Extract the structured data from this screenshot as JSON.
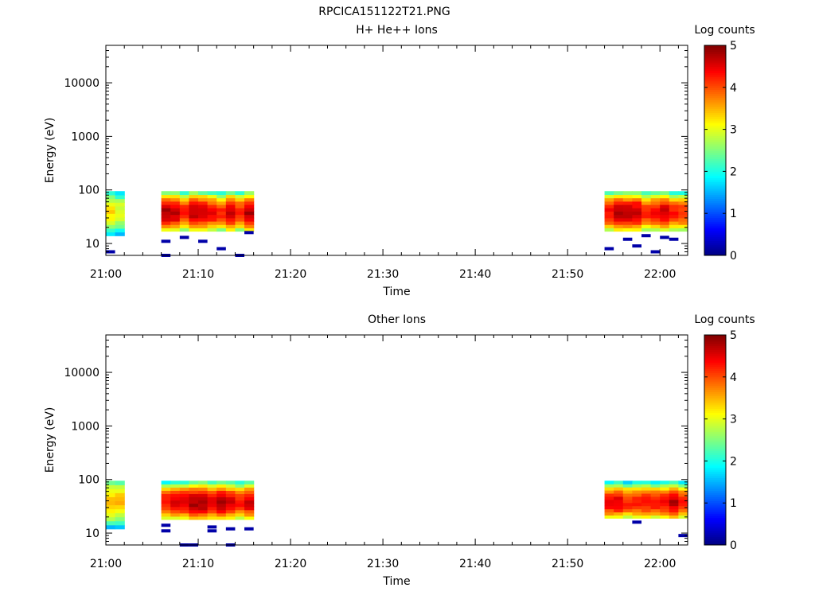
{
  "figure_title": "RPCICA151122T21.PNG",
  "chart_data": [
    {
      "type": "heatmap",
      "title": "H+ He++ Ions",
      "xlabel": "Time",
      "ylabel": "Energy (eV)",
      "y_scale": "log",
      "ylim": [
        6,
        50000
      ],
      "xlim": [
        "21:00",
        "22:03"
      ],
      "x_ticks": [
        "21:00",
        "21:10",
        "21:20",
        "21:30",
        "21:40",
        "21:50",
        "22:00"
      ],
      "y_ticks": [
        "10",
        "100",
        "1000",
        "10000"
      ],
      "colorbar": {
        "label": "Log counts",
        "min": 0,
        "max": 5,
        "ticks": [
          "0",
          "1",
          "2",
          "3",
          "4",
          "5"
        ]
      },
      "blocks": [
        {
          "start": "21:00",
          "end": "21:02",
          "e_min": 14,
          "e_max": 95,
          "peak": 3.3
        },
        {
          "start": "21:06",
          "end": "21:16",
          "e_min": 17,
          "e_max": 95,
          "peak": 4.5
        },
        {
          "start": "21:54",
          "end": "22:03",
          "e_min": 17,
          "e_max": 95,
          "peak": 4.4
        }
      ],
      "sparse_low_energy": [
        {
          "time": "21:00",
          "energy": 7
        },
        {
          "time": "21:06",
          "energy": 11
        },
        {
          "time": "21:06",
          "energy": 6
        },
        {
          "time": "21:08",
          "energy": 13
        },
        {
          "time": "21:10",
          "energy": 11
        },
        {
          "time": "21:12",
          "energy": 8
        },
        {
          "time": "21:14",
          "energy": 6
        },
        {
          "time": "21:15",
          "energy": 16
        },
        {
          "time": "21:54",
          "energy": 8
        },
        {
          "time": "21:56",
          "energy": 12
        },
        {
          "time": "21:57",
          "energy": 9
        },
        {
          "time": "21:58",
          "energy": 14
        },
        {
          "time": "21:59",
          "energy": 7
        },
        {
          "time": "22:00",
          "energy": 13
        },
        {
          "time": "22:01",
          "energy": 12
        }
      ]
    },
    {
      "type": "heatmap",
      "title": "Other Ions",
      "xlabel": "Time",
      "ylabel": "Energy (eV)",
      "y_scale": "log",
      "ylim": [
        6,
        50000
      ],
      "xlim": [
        "21:00",
        "22:03"
      ],
      "x_ticks": [
        "21:00",
        "21:10",
        "21:20",
        "21:30",
        "21:40",
        "21:50",
        "22:00"
      ],
      "y_ticks": [
        "10",
        "100",
        "1000",
        "10000"
      ],
      "colorbar": {
        "label": "Log counts",
        "min": 0,
        "max": 5,
        "ticks": [
          "0",
          "1",
          "2",
          "3",
          "4",
          "5"
        ]
      },
      "blocks": [
        {
          "start": "21:00",
          "end": "21:02",
          "e_min": 12,
          "e_max": 95,
          "peak": 3.4
        },
        {
          "start": "21:06",
          "end": "21:16",
          "e_min": 18,
          "e_max": 95,
          "peak": 4.6
        },
        {
          "start": "21:54",
          "end": "22:03",
          "e_min": 19,
          "e_max": 95,
          "peak": 4.5
        }
      ],
      "sparse_low_energy": [
        {
          "time": "21:06",
          "energy": 14
        },
        {
          "time": "21:06",
          "energy": 11
        },
        {
          "time": "21:08",
          "energy": 6
        },
        {
          "time": "21:09",
          "energy": 6
        },
        {
          "time": "21:11",
          "energy": 13
        },
        {
          "time": "21:11",
          "energy": 11
        },
        {
          "time": "21:13",
          "energy": 6
        },
        {
          "time": "21:13",
          "energy": 12
        },
        {
          "time": "21:15",
          "energy": 12
        },
        {
          "time": "21:57",
          "energy": 16
        },
        {
          "time": "22:02",
          "energy": 9
        }
      ]
    }
  ]
}
